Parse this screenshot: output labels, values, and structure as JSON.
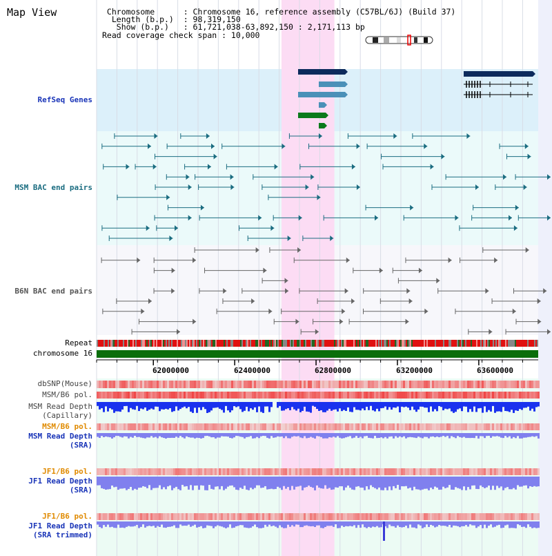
{
  "header": {
    "title": "Map View",
    "info_lines": [
      " Chromosome      : Chromosome 16, reference assembly (C57BL/6J) (Build 37)",
      "  Length (b.p.)  : 98,319,150",
      "   Show (b.p.)   : 61,721,038-63,892,150 : 2,171,113 bp",
      "Read coverage check span : 10,000"
    ]
  },
  "tracks": {
    "refseq": "RefSeq Genes",
    "msm_bac": "MSM BAC end pairs",
    "b6n_bac": "B6N BAC end pairs",
    "repeat": "Repeat",
    "chromosome": "chromosome 16",
    "dbsnp": "dbSNP(Mouse)",
    "msm_b6_pol": "MSM/B6 pol.",
    "msm_depth_cap_1": "MSM Read Depth",
    "msm_depth_cap_2": "(Capillary)",
    "msm_b6_pol_sra": "MSM/B6 pol.",
    "msm_depth_sra_1": "MSM Read Depth",
    "msm_depth_sra_2": "(SRA)",
    "jf1_b6_pol": "JF1/B6 pol.",
    "jf1_depth_sra_1": "JF1 Read Depth",
    "jf1_depth_sra_2": "(SRA)",
    "jf1_b6_pol_trim": "JF1/B6 pol.",
    "jf1_depth_trim_1": "JF1 Read Depth",
    "jf1_depth_trim_2": "(SRA trimmed)"
  },
  "axis_ticks": [
    "62000000",
    "62400000",
    "62800000",
    "63200000",
    "63600000"
  ],
  "axis_tick_values": [
    62000000,
    62400000,
    62800000,
    63200000,
    63600000
  ],
  "view_range": [
    61721038,
    63892150
  ],
  "highlight_range": [
    62630000,
    62890000
  ],
  "colors": {
    "refseq_bg": "#dcf0fa",
    "bac_bg": "#ebfafa",
    "highlight": "#fcdcf4",
    "gene_dark": "#0c2a5c",
    "gene_mid": "#4a90b8",
    "gene_green": "#0b7a1c",
    "bac_line": "#1a6c80",
    "b6n_line": "#666666",
    "chromosome": "#0b6e0b",
    "depth_blue": "#1a32ee",
    "depth_light": "#8080ee",
    "snp_red": "#f06060"
  }
}
